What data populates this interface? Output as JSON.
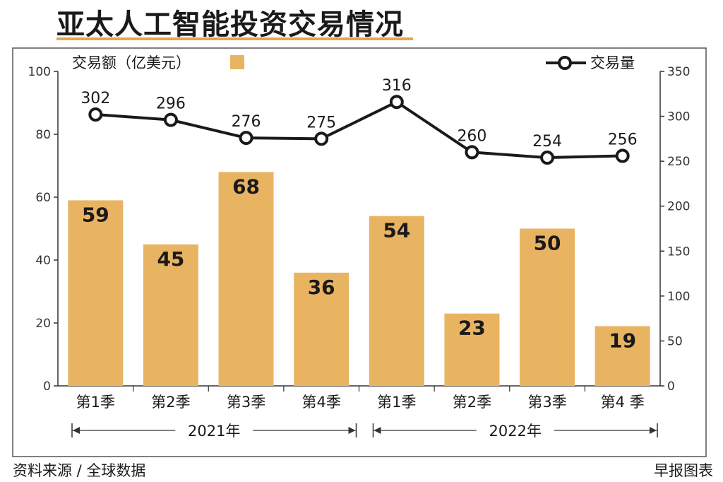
{
  "title": "亚太人工智能投资交易情况",
  "source": "资料来源 / 全球数据",
  "credit": "早报图表",
  "colors": {
    "bar": "#e9b462",
    "line": "#1a1a1a",
    "accent": "#e3a84a"
  },
  "chart_data": {
    "type": "bar",
    "categories": [
      "第1季",
      "第2季",
      "第3季",
      "第4季",
      "第1季",
      "第2季",
      "第3季",
      "第4 季"
    ],
    "groups": [
      {
        "label": "2021年",
        "from": 0,
        "to": 3
      },
      {
        "label": "2022年",
        "from": 4,
        "to": 7
      }
    ],
    "series": [
      {
        "name": "交易额（亿美元）",
        "type": "bar",
        "axis": "left",
        "values": [
          59,
          45,
          68,
          36,
          54,
          23,
          50,
          19
        ]
      },
      {
        "name": "交易量",
        "type": "line",
        "axis": "right",
        "values": [
          302,
          296,
          276,
          275,
          316,
          260,
          254,
          256
        ]
      }
    ],
    "ylim": [
      0,
      100
    ],
    "yticks": [
      0,
      20,
      40,
      60,
      80,
      100
    ],
    "y2lim": [
      0,
      350
    ],
    "y2ticks": [
      0,
      50,
      100,
      150,
      200,
      250,
      300,
      350
    ],
    "grid": false,
    "legend": "top"
  }
}
